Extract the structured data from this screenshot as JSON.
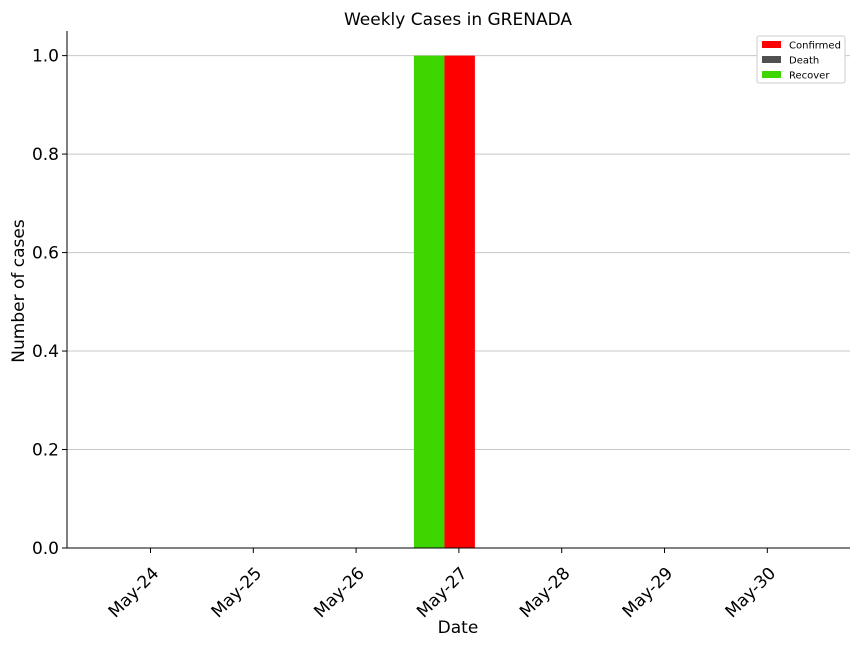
{
  "chart_data": {
    "type": "bar",
    "title": "Weekly Cases in GRENADA",
    "xlabel": "Date",
    "ylabel": "Number of cases",
    "categories": [
      "May-24",
      "May-25",
      "May-26",
      "May-27",
      "May-28",
      "May-29",
      "May-30"
    ],
    "series": [
      {
        "name": "Confirmed",
        "color": "#ff0000",
        "values": [
          0,
          0,
          0,
          1,
          0,
          0,
          0
        ]
      },
      {
        "name": "Death",
        "color": "#505050",
        "values": [
          0,
          0,
          0,
          0,
          0,
          0,
          0
        ]
      },
      {
        "name": "Recover",
        "color": "#3ed600",
        "values": [
          0,
          0,
          0,
          1,
          0,
          0,
          0
        ]
      }
    ],
    "ylim": [
      0,
      1.05
    ],
    "yticks": [
      "0.0",
      "0.2",
      "0.4",
      "0.6",
      "0.8",
      "1.0"
    ],
    "grid": "horizontal",
    "legend_position": "top-right"
  }
}
